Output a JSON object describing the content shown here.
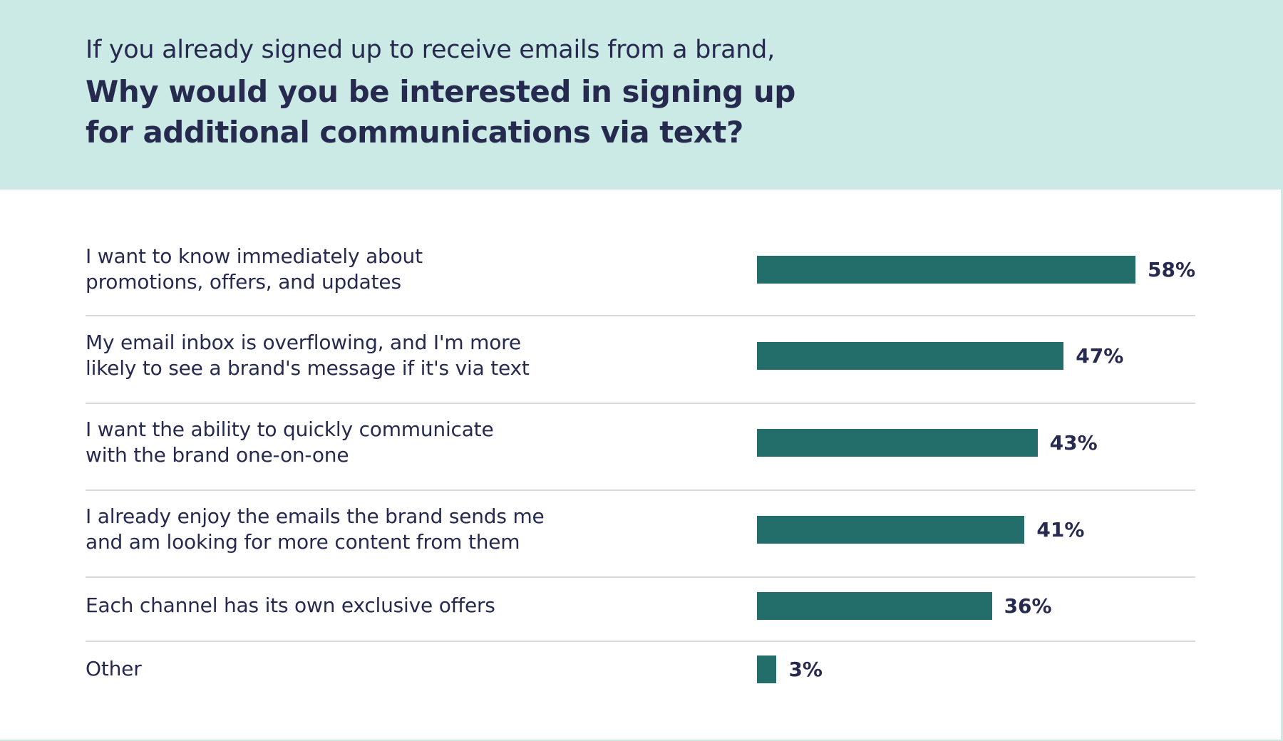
{
  "chart_data": {
    "type": "bar",
    "orientation": "horizontal",
    "title_intro": "If you already signed up to receive emails from a brand,",
    "title_lines": [
      "Why would you be interested in signing up",
      "for additional communications via text?"
    ],
    "categories": [
      [
        "I want to know immediately about",
        "promotions, offers, and updates"
      ],
      [
        "My email inbox is overflowing, and I'm more",
        "likely to see a brand's message if it's via text"
      ],
      [
        "I want the ability to quickly communicate",
        "with the brand one-on-one"
      ],
      [
        "I already enjoy the emails the brand sends me",
        "and am looking for more content from them"
      ],
      [
        "Each channel has its own exclusive offers"
      ],
      [
        "Other"
      ]
    ],
    "values": [
      58,
      47,
      43,
      41,
      36,
      3
    ],
    "value_labels": [
      "58%",
      "47%",
      "43%",
      "41%",
      "36%",
      "3%"
    ],
    "unit": "%",
    "xlim": [
      0,
      100
    ],
    "grid": false,
    "bar_color": "#236d6b",
    "text_color": "#262a4f",
    "header_color": "#cceae5"
  }
}
